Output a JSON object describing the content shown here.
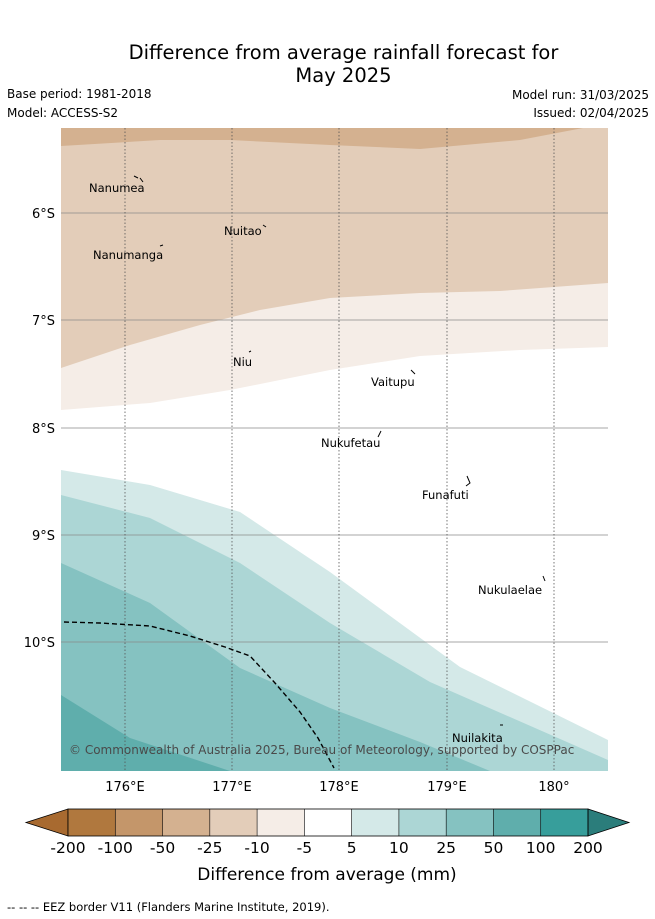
{
  "title_line1": "Difference from average rainfall forecast for",
  "title_line2": "May 2025",
  "base_period": "Base period: 1981-2018",
  "model": "Model: ACCESS-S2",
  "model_run": "Model run: 31/03/2025",
  "issued": "Issued: 02/04/2025",
  "lat_ticks": [
    "6°S",
    "7°S",
    "8°S",
    "9°S",
    "10°S"
  ],
  "lon_ticks": [
    "176°E",
    "177°E",
    "178°E",
    "179°E",
    "180°"
  ],
  "islands": {
    "nanumea": "Nanumea",
    "nuitao": "Nuitao",
    "nanumanga": "Nanumanga",
    "niu": "Niu",
    "vaitupu": "Vaitupu",
    "nukufetau": "Nukufetau",
    "funafuti": "Funafuti",
    "nukulaelae": "Nukulaelae",
    "nuilakita": "Nuilakita"
  },
  "copyright": "© Commonwealth of Australia 2025, Bureau of Meteorology, supported by COSPPac",
  "legend": {
    "ticks": [
      "-200",
      "-100",
      "-50",
      "-25",
      "-10",
      "-5",
      "5",
      "10",
      "25",
      "50",
      "100",
      "200"
    ],
    "colors": [
      "#a86a30",
      "#b0783e",
      "#c4966a",
      "#d4b190",
      "#e3cdb9",
      "#f5ede7",
      "#ffffff",
      "#d4e9e8",
      "#acd6d5",
      "#85c2c1",
      "#5faeac",
      "#379e9b",
      "#2b7d7b"
    ],
    "label": "Difference from average (mm)"
  },
  "footer": "-- -- -- EEZ border V11 (Flanders Marine Institute, 2019)."
}
